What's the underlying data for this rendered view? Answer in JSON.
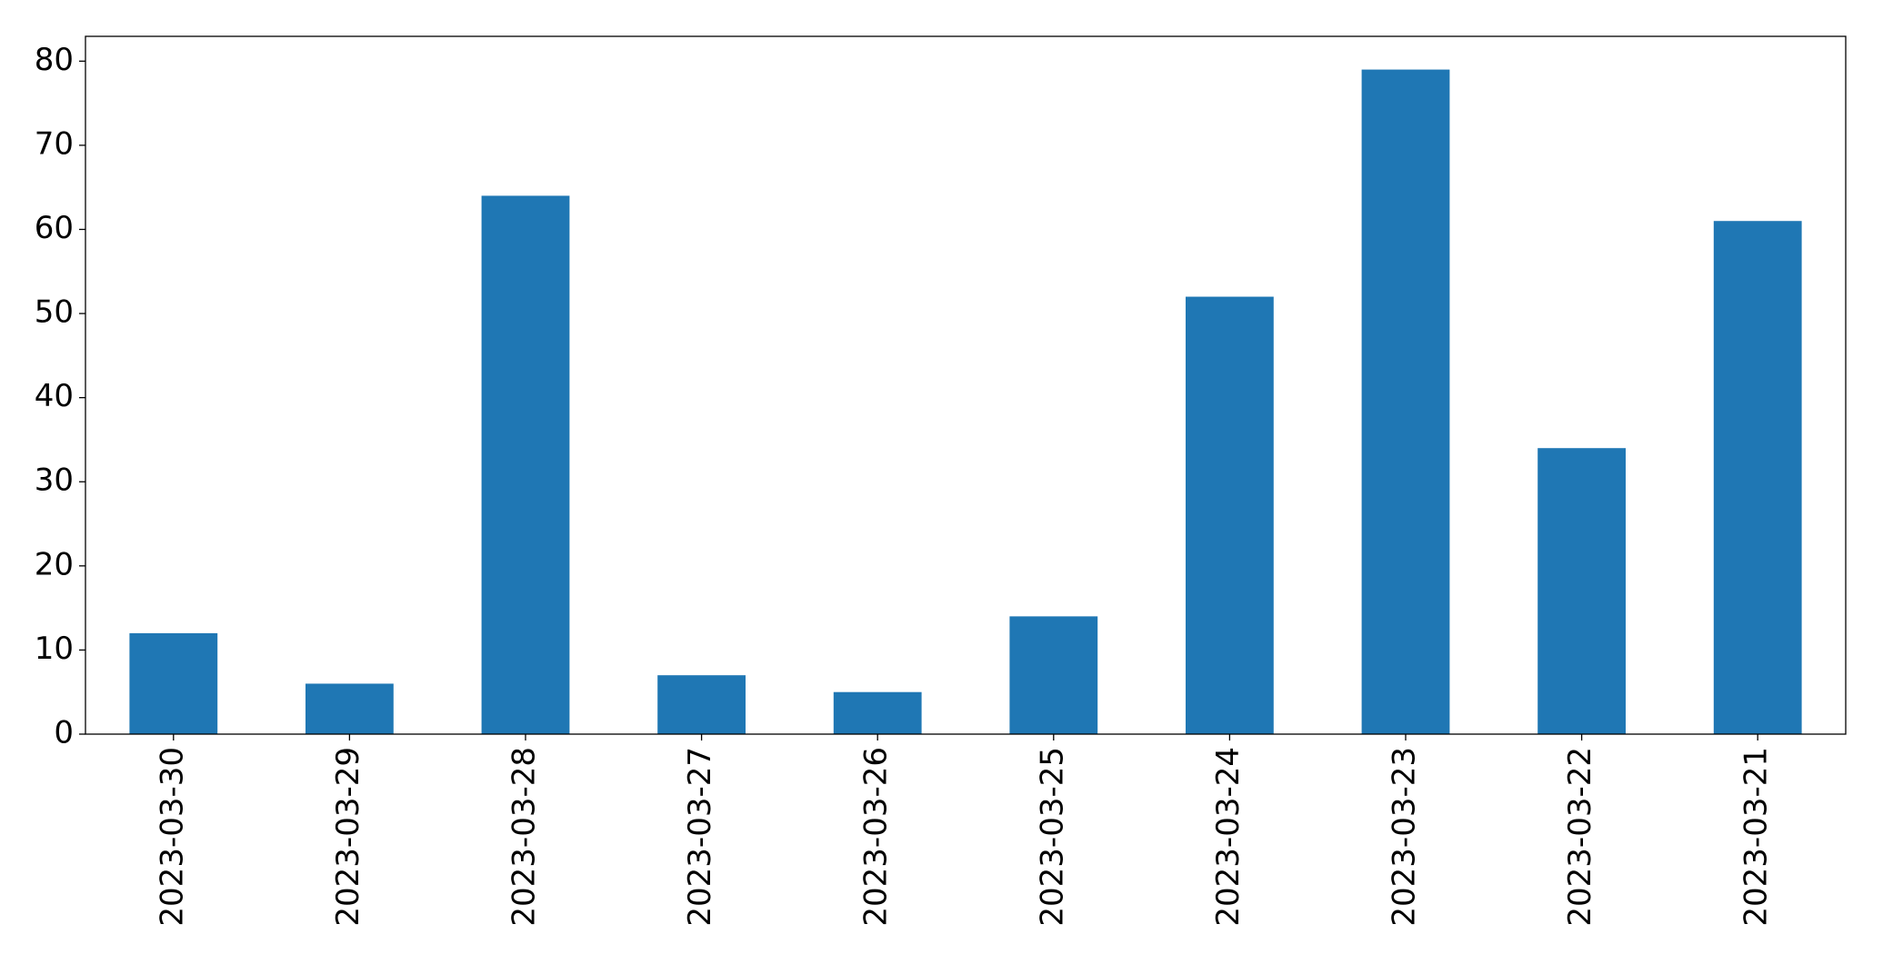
{
  "chart_data": {
    "type": "bar",
    "categories": [
      "2023-03-30",
      "2023-03-29",
      "2023-03-28",
      "2023-03-27",
      "2023-03-26",
      "2023-03-25",
      "2023-03-24",
      "2023-03-23",
      "2023-03-22",
      "2023-03-21"
    ],
    "values": [
      12,
      6,
      64,
      7,
      5,
      14,
      52,
      79,
      34,
      61
    ],
    "color": "#1f77b4",
    "ylim": [
      0,
      82.95
    ],
    "yticks": [
      0,
      10,
      20,
      30,
      40,
      50,
      60,
      70,
      80
    ],
    "grid": false
  }
}
